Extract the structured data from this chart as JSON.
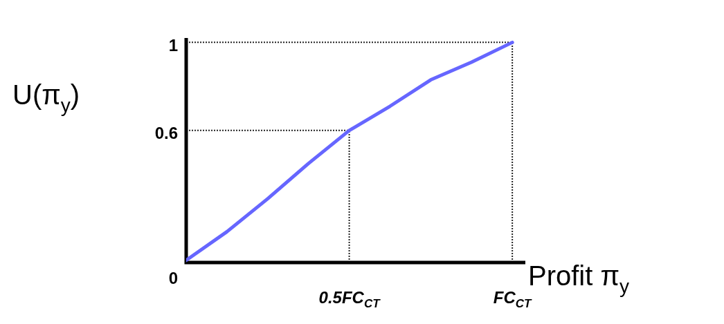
{
  "chart_data": {
    "type": "line",
    "xlabel": "Profit π$_{y}$",
    "ylabel": "U(π$_{y}$)",
    "categories": [
      null,
      null,
      null,
      null,
      "0.5FC$_{CT}$",
      null,
      null,
      null,
      "FC$_{CT}$"
    ],
    "series": [
      {
        "color": "#6666ff",
        "values": [
          0.01,
          0.14,
          0.29,
          0.45,
          0.6,
          0.71,
          0.83,
          0.91,
          1
        ]
      }
    ],
    "ylim": [
      0,
      1.02
    ],
    "yticks": [
      0,
      0.6,
      1
    ],
    "ref_lines": [
      {
        "axis": "y",
        "value": 0.6,
        "line_style": "dotted"
      },
      {
        "axis": "y",
        "value": 1,
        "line_style": "dotted"
      },
      {
        "axis": "x",
        "value": "0.5FC$_{CT}$",
        "line_style": "dotted"
      },
      {
        "axis": "x",
        "value": "FC$_{CT}$",
        "line_style": "dotted"
      }
    ],
    "grid": false,
    "legend": false,
    "marker": "none",
    "line_style": "solid"
  }
}
